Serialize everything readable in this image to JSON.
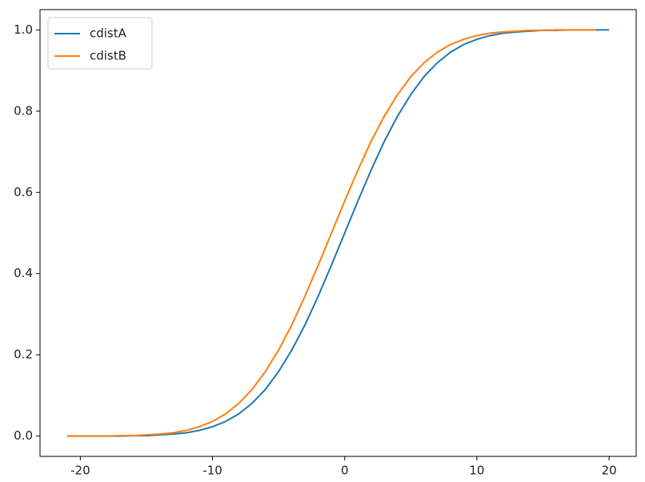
{
  "chart_data": {
    "type": "line",
    "series": [
      {
        "name": "cdistA",
        "color": "#1f77b4",
        "x": [
          -21,
          -20,
          -19,
          -18,
          -17,
          -16,
          -15,
          -14,
          -13,
          -12,
          -11,
          -10,
          -9,
          -8,
          -7,
          -6,
          -5,
          -4,
          -3,
          -2,
          -1,
          0,
          1,
          2,
          3,
          4,
          5,
          6,
          7,
          8,
          9,
          10,
          11,
          12,
          13,
          14,
          15,
          16,
          17,
          18,
          19,
          20
        ],
        "values": [
          0.0,
          0.0,
          0.0,
          0.0,
          0.0,
          0.001,
          0.001,
          0.003,
          0.005,
          0.008,
          0.014,
          0.023,
          0.036,
          0.055,
          0.081,
          0.115,
          0.159,
          0.212,
          0.274,
          0.345,
          0.421,
          0.5,
          0.579,
          0.655,
          0.726,
          0.788,
          0.841,
          0.885,
          0.919,
          0.945,
          0.964,
          0.977,
          0.986,
          0.992,
          0.995,
          0.997,
          0.999,
          0.999,
          1.0,
          1.0,
          1.0,
          1.0
        ]
      },
      {
        "name": "cdistB",
        "color": "#ff7f0e",
        "x": [
          -21,
          -20,
          -19,
          -18,
          -17,
          -16,
          -15,
          -14,
          -13,
          -12,
          -11,
          -10,
          -9,
          -8,
          -7,
          -6,
          -5,
          -4,
          -3,
          -2,
          -1,
          0,
          1,
          2,
          3,
          4,
          5,
          6,
          7,
          8,
          9,
          10,
          11,
          12,
          13,
          14,
          15,
          16,
          17,
          18,
          19
        ],
        "values": [
          0.0,
          0.0,
          0.0,
          0.0,
          0.001,
          0.001,
          0.003,
          0.005,
          0.008,
          0.014,
          0.023,
          0.036,
          0.055,
          0.081,
          0.115,
          0.159,
          0.212,
          0.274,
          0.345,
          0.421,
          0.5,
          0.579,
          0.655,
          0.726,
          0.788,
          0.841,
          0.885,
          0.919,
          0.945,
          0.964,
          0.977,
          0.986,
          0.992,
          0.995,
          0.997,
          0.999,
          0.999,
          1.0,
          1.0,
          1.0,
          1.0
        ]
      }
    ],
    "xlim": [
      -23.05,
      22.05
    ],
    "xticks": [
      -20,
      -10,
      0,
      10,
      20
    ],
    "ylim": [
      -0.05,
      1.05
    ],
    "yticks": [
      {
        "value": 0,
        "label": "0.0"
      },
      0.2,
      0.4,
      0.6,
      0.8,
      {
        "value": 1,
        "label": "1.0"
      }
    ],
    "legend": "upper left"
  }
}
